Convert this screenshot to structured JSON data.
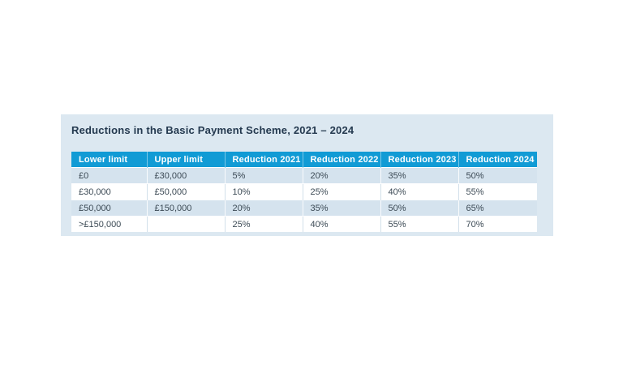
{
  "panel": {
    "title": "Reductions in the Basic Payment Scheme, 2021 – 2024",
    "background_color": "#dce8f1",
    "title_color": "#24394f"
  },
  "table": {
    "header_background_color": "#119bd5",
    "header_text_color": "#ffffff",
    "shaded_row_color": "#d5e3ee",
    "body_text_color": "#3c4a55",
    "headers": [
      "Lower limit",
      "Upper limit",
      "Reduction 2021",
      "Reduction 2022",
      "Reduction 2023",
      "Reduction 2024"
    ],
    "rows": [
      [
        "£0",
        "£30,000",
        "5%",
        "20%",
        "35%",
        "50%"
      ],
      [
        "£30,000",
        "£50,000",
        "10%",
        "25%",
        "40%",
        "55%"
      ],
      [
        "£50,000",
        "£150,000",
        "20%",
        "35%",
        "50%",
        "65%"
      ],
      [
        ">£150,000",
        "",
        "25%",
        "40%",
        "55%",
        "70%"
      ]
    ]
  },
  "chart_data": {
    "type": "table",
    "title": "Reductions in the Basic Payment Scheme, 2021 – 2024",
    "columns": [
      "Lower limit",
      "Upper limit",
      "Reduction 2021",
      "Reduction 2022",
      "Reduction 2023",
      "Reduction 2024"
    ],
    "rows": [
      [
        "£0",
        "£30,000",
        "5%",
        "20%",
        "35%",
        "50%"
      ],
      [
        "£30,000",
        "£50,000",
        "10%",
        "25%",
        "40%",
        "55%"
      ],
      [
        "£50,000",
        "£150,000",
        "20%",
        "35%",
        "50%",
        "65%"
      ],
      [
        ">£150,000",
        "",
        "25%",
        "40%",
        "55%",
        "70%"
      ]
    ]
  }
}
